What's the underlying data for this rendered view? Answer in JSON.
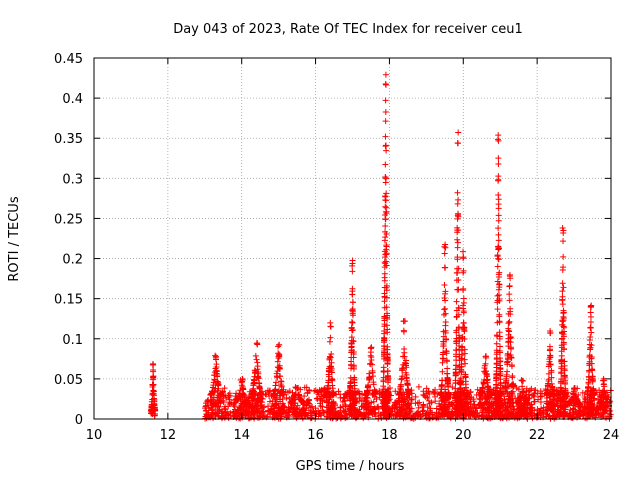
{
  "chart_data": {
    "type": "scatter",
    "title": "Day 043 of 2023, Rate Of TEC Index for receiver ceu1",
    "xlabel": "GPS time / hours",
    "ylabel": "ROTI / TECUs",
    "xlim": [
      10,
      24
    ],
    "ylim": [
      0,
      0.45
    ],
    "xticks": [
      10,
      12,
      14,
      16,
      18,
      20,
      22,
      24
    ],
    "yticks": [
      0,
      0.05,
      0.1,
      0.15,
      0.2,
      0.25,
      0.3,
      0.35,
      0.4,
      0.45
    ],
    "ytick_labels": [
      "0",
      "0.05",
      "0.1",
      "0.15",
      "0.2",
      "0.25",
      "0.3",
      "0.35",
      "0.4",
      "0.45"
    ],
    "grid": true,
    "marker": "+",
    "color": "#ff0000",
    "series": [
      {
        "name": "ROTI",
        "bursts": [
          {
            "center": 11.6,
            "width": 0.06,
            "peak": 0.07,
            "base": 0.01
          },
          {
            "center": 13.3,
            "width": 0.15,
            "peak": 0.08,
            "base": 0.03
          },
          {
            "center": 14.0,
            "width": 0.2,
            "peak": 0.05,
            "base": 0.02
          },
          {
            "center": 14.4,
            "width": 0.15,
            "peak": 0.095,
            "base": 0.03
          },
          {
            "center": 15.0,
            "width": 0.15,
            "peak": 0.095,
            "base": 0.03
          },
          {
            "center": 15.5,
            "width": 0.2,
            "peak": 0.04,
            "base": 0.02
          },
          {
            "center": 16.4,
            "width": 0.1,
            "peak": 0.12,
            "base": 0.03
          },
          {
            "center": 17.0,
            "width": 0.08,
            "peak": 0.2,
            "base": 0.03
          },
          {
            "center": 17.5,
            "width": 0.15,
            "peak": 0.09,
            "base": 0.03
          },
          {
            "center": 17.9,
            "width": 0.08,
            "peak": 0.43,
            "base": 0.03
          },
          {
            "center": 18.4,
            "width": 0.15,
            "peak": 0.125,
            "base": 0.03
          },
          {
            "center": 19.5,
            "width": 0.12,
            "peak": 0.22,
            "base": 0.03
          },
          {
            "center": 19.85,
            "width": 0.08,
            "peak": 0.36,
            "base": 0.03
          },
          {
            "center": 20.0,
            "width": 0.1,
            "peak": 0.21,
            "base": 0.03
          },
          {
            "center": 20.6,
            "width": 0.15,
            "peak": 0.08,
            "base": 0.03
          },
          {
            "center": 20.95,
            "width": 0.08,
            "peak": 0.355,
            "base": 0.03
          },
          {
            "center": 21.25,
            "width": 0.12,
            "peak": 0.18,
            "base": 0.04
          },
          {
            "center": 21.6,
            "width": 0.15,
            "peak": 0.05,
            "base": 0.02
          },
          {
            "center": 22.35,
            "width": 0.1,
            "peak": 0.11,
            "base": 0.03
          },
          {
            "center": 22.7,
            "width": 0.08,
            "peak": 0.24,
            "base": 0.03
          },
          {
            "center": 23.0,
            "width": 0.15,
            "peak": 0.04,
            "base": 0.02
          },
          {
            "center": 23.45,
            "width": 0.1,
            "peak": 0.145,
            "base": 0.03
          },
          {
            "center": 23.8,
            "width": 0.12,
            "peak": 0.05,
            "base": 0.02
          }
        ],
        "background": {
          "x_start": 13.0,
          "x_end": 24.0,
          "low": 0.0,
          "high": 0.035
        }
      }
    ]
  }
}
